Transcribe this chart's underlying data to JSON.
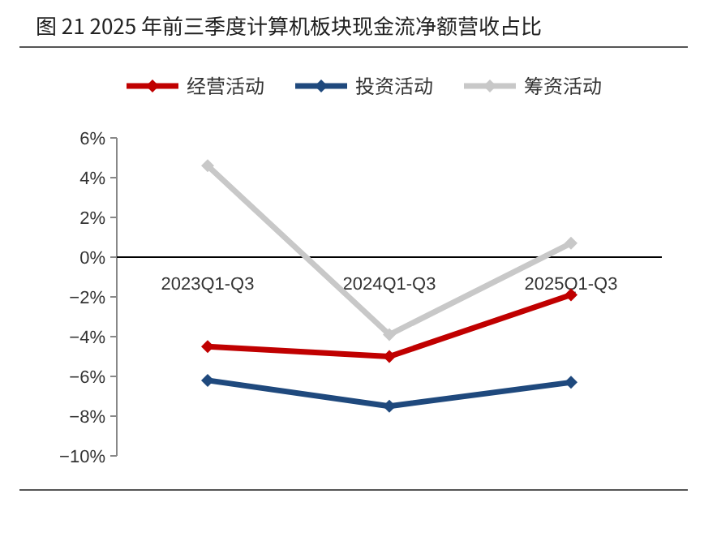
{
  "chart_data": {
    "type": "line",
    "title": "图 21   2025 年前三季度计算机板块现金流净额营收占比",
    "categories": [
      "2023Q1-Q3",
      "2024Q1-Q3",
      "2025Q1-Q3"
    ],
    "series": [
      {
        "name": "经营活动",
        "color": "#c00000",
        "values": [
          -4.5,
          -5.0,
          -1.9
        ]
      },
      {
        "name": "投资活动",
        "color": "#1f497d",
        "values": [
          -6.2,
          -7.5,
          -6.3
        ]
      },
      {
        "name": "筹资活动",
        "color": "#c8c8c8",
        "values": [
          4.6,
          -3.9,
          0.7
        ]
      }
    ],
    "ylim": [
      -10,
      6
    ],
    "yticks": [
      {
        "value": 6,
        "label": "6%"
      },
      {
        "value": 4,
        "label": "4%"
      },
      {
        "value": 2,
        "label": "2%"
      },
      {
        "value": 0,
        "label": "0%"
      },
      {
        "value": -2,
        "label": "−2%"
      },
      {
        "value": -4,
        "label": "−4%"
      },
      {
        "value": -6,
        "label": "−6%"
      },
      {
        "value": -8,
        "label": "−8%"
      },
      {
        "value": -10,
        "label": "−10%"
      }
    ],
    "legend": "top",
    "marker": "diamond",
    "line_style": "solid",
    "grid": false
  }
}
